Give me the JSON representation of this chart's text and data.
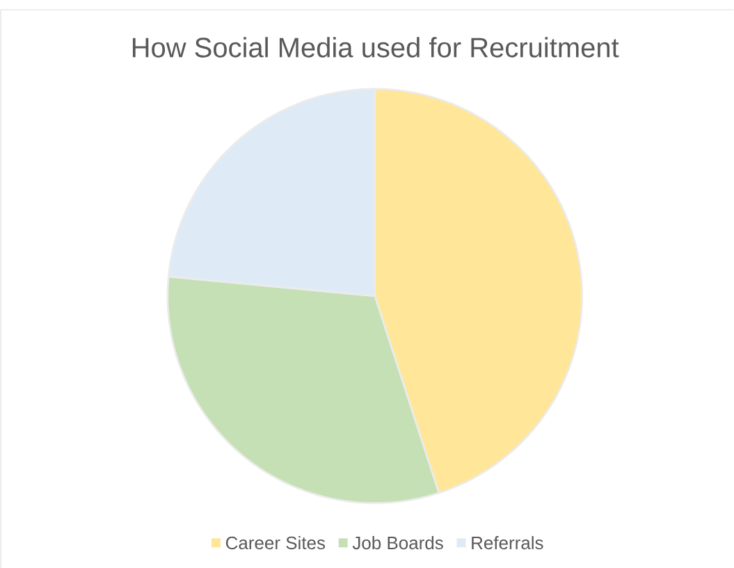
{
  "chart_data": {
    "type": "pie",
    "title": "How Social Media used for Recruitment",
    "categories": [
      "Career Sites",
      "Job Boards",
      "Referrals"
    ],
    "values": [
      45,
      31.5,
      23.5
    ],
    "colors": [
      "#ffe699",
      "#c5e0b4",
      "#deebf7"
    ],
    "legend": "bottom"
  }
}
